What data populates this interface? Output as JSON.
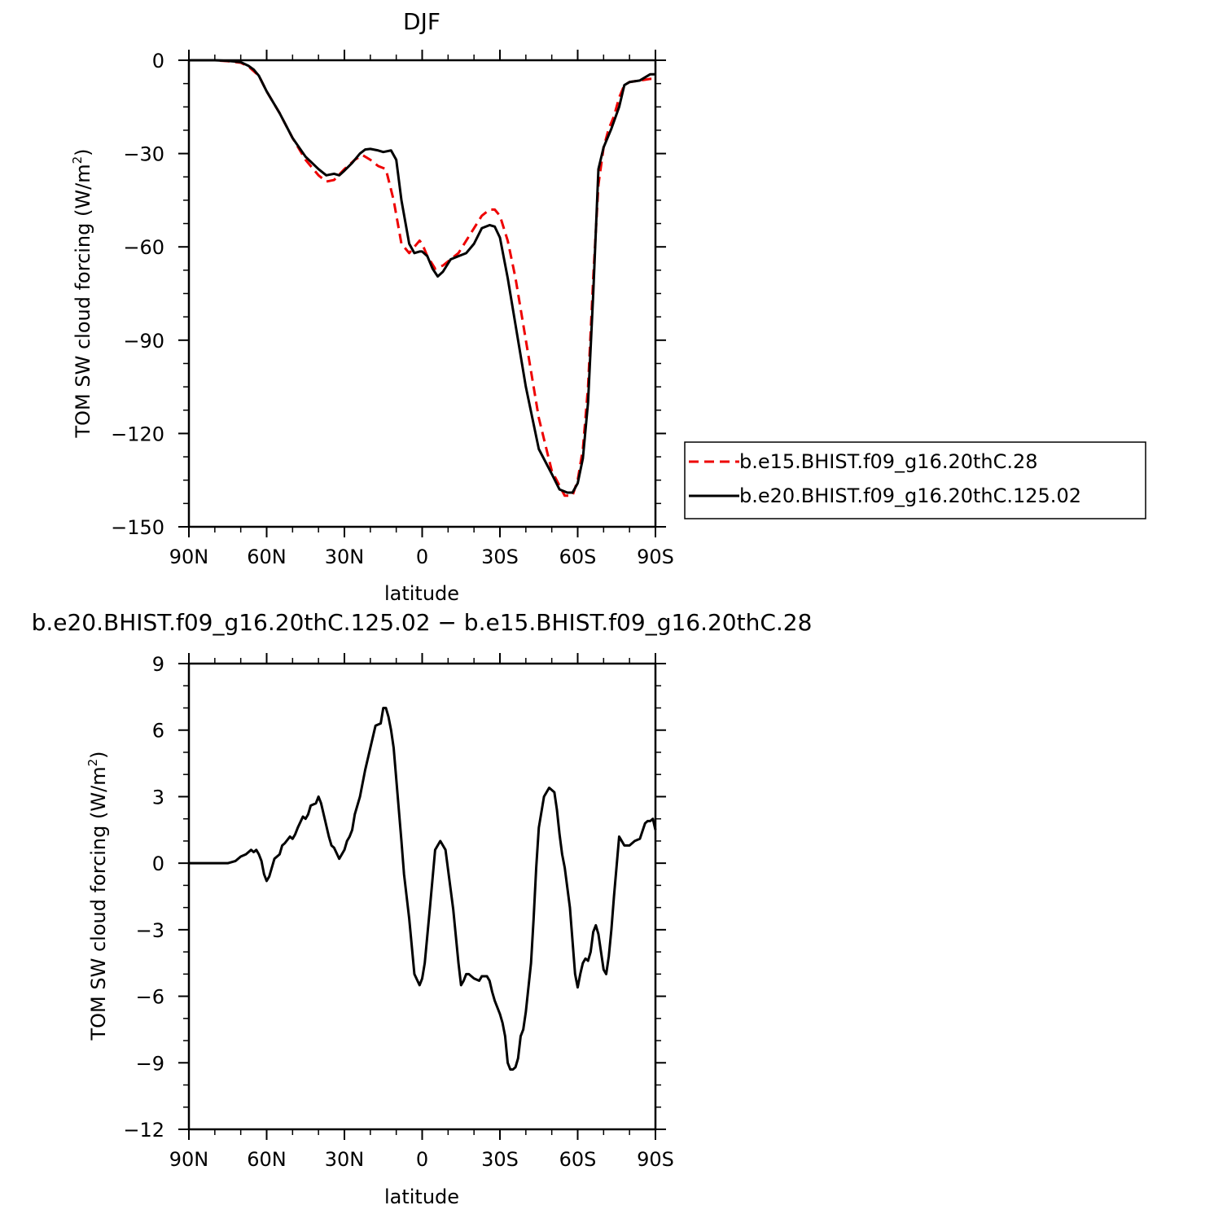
{
  "chart_data": [
    {
      "type": "line",
      "title": "DJF",
      "xlabel": "latitude",
      "ylabel": "TOM SW cloud forcing (W/m²)",
      "ylabel_main": "TOM SW cloud forcing (W/m",
      "ylabel_sup": "2",
      "ylabel_end": ")",
      "xlim": [
        90,
        -90
      ],
      "ylim": [
        -150,
        0
      ],
      "xticks": [
        90,
        60,
        30,
        0,
        -30,
        -60,
        -90
      ],
      "xtick_labels": [
        "90N",
        "60N",
        "30N",
        "0",
        "30S",
        "60S",
        "90S"
      ],
      "yticks": [
        0,
        -30,
        -60,
        -90,
        -120,
        -150
      ],
      "ytick_labels": [
        "0",
        "−30",
        "−60",
        "−90",
        "−120",
        "−150"
      ],
      "legend": "right",
      "series": [
        {
          "name": "b.e15.BHIST.f09_g16.20thC.28",
          "color": "#ee0000",
          "dash": "dashed",
          "x": [
            90,
            80,
            75,
            70,
            67,
            65,
            63,
            60,
            55,
            50,
            45,
            40,
            37,
            34,
            30,
            26,
            23,
            20,
            17,
            14,
            11,
            8,
            5,
            3,
            1,
            0,
            -2,
            -5,
            -8,
            -11,
            -14,
            -17,
            -20,
            -23,
            -26,
            -28,
            -30,
            -33,
            -36,
            -40,
            -45,
            -50,
            -55,
            -58,
            -60,
            -62,
            -64,
            -66,
            -68,
            -70,
            -72,
            -74,
            -76,
            -78,
            -80,
            -84,
            -88,
            -90
          ],
          "y": [
            0,
            0,
            -0.3,
            -0.8,
            -2,
            -3.5,
            -5,
            -10,
            -17,
            -25,
            -32,
            -37,
            -39,
            -38.5,
            -35,
            -32,
            -30.5,
            -32,
            -34,
            -35,
            -45,
            -59,
            -62,
            -60,
            -58,
            -59,
            -63,
            -67,
            -66,
            -64,
            -62,
            -58,
            -54,
            -50,
            -48,
            -48,
            -50,
            -58,
            -70,
            -90,
            -115,
            -132,
            -140,
            -140,
            -135,
            -125,
            -105,
            -70,
            -40,
            -28,
            -22,
            -18,
            -12,
            -8,
            -7,
            -6.5,
            -6,
            -6
          ]
        },
        {
          "name": "b.e20.BHIST.f09_g16.20thC.125.02",
          "color": "#000000",
          "dash": "solid",
          "x": [
            90,
            80,
            75,
            70,
            67,
            65,
            63,
            60,
            55,
            50,
            45,
            40,
            37,
            34,
            32,
            30,
            27,
            24,
            22,
            20,
            17,
            15,
            12,
            10,
            8,
            5,
            3,
            1,
            0,
            -2,
            -4,
            -6,
            -8,
            -11,
            -14,
            -17,
            -20,
            -23,
            -26,
            -28,
            -30,
            -33,
            -36,
            -40,
            -45,
            -50,
            -53,
            -56,
            -58,
            -60,
            -62,
            -64,
            -66,
            -68,
            -70,
            -73,
            -76,
            -78,
            -80,
            -84,
            -88,
            -90
          ],
          "y": [
            0,
            0,
            -0.2,
            -0.6,
            -1.8,
            -3,
            -5,
            -10,
            -17,
            -25,
            -31,
            -35,
            -37,
            -36.5,
            -37,
            -35.5,
            -33,
            -30,
            -28.7,
            -28.5,
            -29,
            -29.5,
            -29,
            -32,
            -45,
            -59,
            -62,
            -61.5,
            -61.5,
            -63,
            -67,
            -69.5,
            -68,
            -64,
            -63,
            -62,
            -59,
            -54,
            -53,
            -53.5,
            -57,
            -70,
            -85,
            -105,
            -125,
            -133,
            -138,
            -139,
            -139,
            -136,
            -128,
            -110,
            -75,
            -35,
            -28,
            -22,
            -15,
            -8,
            -7,
            -6.5,
            -4.5,
            -4.5
          ]
        }
      ]
    },
    {
      "type": "line",
      "title": "b.e20.BHIST.f09_g16.20thC.125.02 − b.e15.BHIST.f09_g16.20thC.28",
      "xlabel": "latitude",
      "ylabel": "TOM SW cloud forcing (W/m²)",
      "ylabel_main": "TOM SW cloud forcing (W/m",
      "ylabel_sup": "2",
      "ylabel_end": ")",
      "xlim": [
        90,
        -90
      ],
      "ylim": [
        -12,
        9
      ],
      "xticks": [
        90,
        60,
        30,
        0,
        -30,
        -60,
        -90
      ],
      "xtick_labels": [
        "90N",
        "60N",
        "30N",
        "0",
        "30S",
        "60S",
        "90S"
      ],
      "yticks": [
        9,
        6,
        3,
        0,
        -3,
        -6,
        -9,
        -12
      ],
      "ytick_labels": [
        "9",
        "6",
        "3",
        "0",
        "−3",
        "−6",
        "−9",
        "−12"
      ],
      "series": [
        {
          "color": "#000000",
          "dash": "solid",
          "x": [
            90,
            78,
            75,
            72,
            70,
            68,
            66,
            65,
            64,
            63,
            62,
            61,
            60,
            59,
            57,
            55,
            54,
            53,
            51,
            50,
            49,
            48,
            46,
            45,
            44,
            43,
            41,
            40,
            39,
            38,
            37,
            36,
            35,
            34,
            32,
            30,
            29,
            28,
            27,
            26,
            24,
            22,
            20,
            18,
            16,
            15,
            14,
            13,
            12,
            11,
            10,
            9,
            8,
            7,
            5,
            3,
            1,
            0,
            -1,
            -3,
            -5,
            -7,
            -9,
            -11,
            -12,
            -14,
            -15,
            -16,
            -17,
            -18,
            -20,
            -22,
            -23,
            -25,
            -26,
            -27,
            -28,
            -30,
            -31,
            -32,
            -33,
            -34,
            -35,
            -36,
            -37,
            -38,
            -39,
            -40,
            -42,
            -43,
            -44,
            -45,
            -47,
            -49,
            -51,
            -52,
            -53,
            -54,
            -55,
            -57,
            -59,
            -60,
            -61,
            -62,
            -63,
            -64,
            -65,
            -66,
            -67,
            -68,
            -70,
            -71,
            -72,
            -73,
            -74,
            -76,
            -78,
            -80,
            -82,
            -84,
            -86,
            -87,
            -88,
            -89,
            -90
          ],
          "y": [
            0,
            0,
            0,
            0.1,
            0.3,
            0.4,
            0.6,
            0.5,
            0.6,
            0.4,
            0.1,
            -0.5,
            -0.8,
            -0.6,
            0.2,
            0.4,
            0.8,
            0.9,
            1.2,
            1.1,
            1.3,
            1.6,
            2.1,
            2.0,
            2.2,
            2.6,
            2.7,
            3.0,
            2.7,
            2.2,
            1.7,
            1.2,
            0.8,
            0.7,
            0.2,
            0.6,
            1.0,
            1.2,
            1.5,
            2.2,
            3.0,
            4.2,
            5.2,
            6.2,
            6.3,
            7.0,
            7.0,
            6.6,
            6.0,
            5.2,
            3.8,
            2.4,
            1.0,
            -0.5,
            -2.5,
            -5.0,
            -5.5,
            -5.2,
            -4.5,
            -2.0,
            0.6,
            1.0,
            0.6,
            -1.2,
            -2.1,
            -4.5,
            -5.5,
            -5.3,
            -5.0,
            -5.0,
            -5.2,
            -5.3,
            -5.1,
            -5.1,
            -5.3,
            -5.8,
            -6.2,
            -6.8,
            -7.2,
            -7.8,
            -9.0,
            -9.3,
            -9.3,
            -9.2,
            -8.8,
            -7.8,
            -7.5,
            -6.7,
            -4.5,
            -2.5,
            -0.2,
            1.6,
            3.0,
            3.4,
            3.2,
            2.4,
            1.3,
            0.4,
            -0.2,
            -2.0,
            -5.0,
            -5.6,
            -5.0,
            -4.5,
            -4.3,
            -4.4,
            -4.0,
            -3.1,
            -2.8,
            -3.2,
            -4.8,
            -5.0,
            -4.2,
            -3.0,
            -1.5,
            1.2,
            0.8,
            0.8,
            1.0,
            1.1,
            1.8,
            1.9,
            1.9,
            2.0,
            1.5
          ]
        }
      ]
    }
  ]
}
